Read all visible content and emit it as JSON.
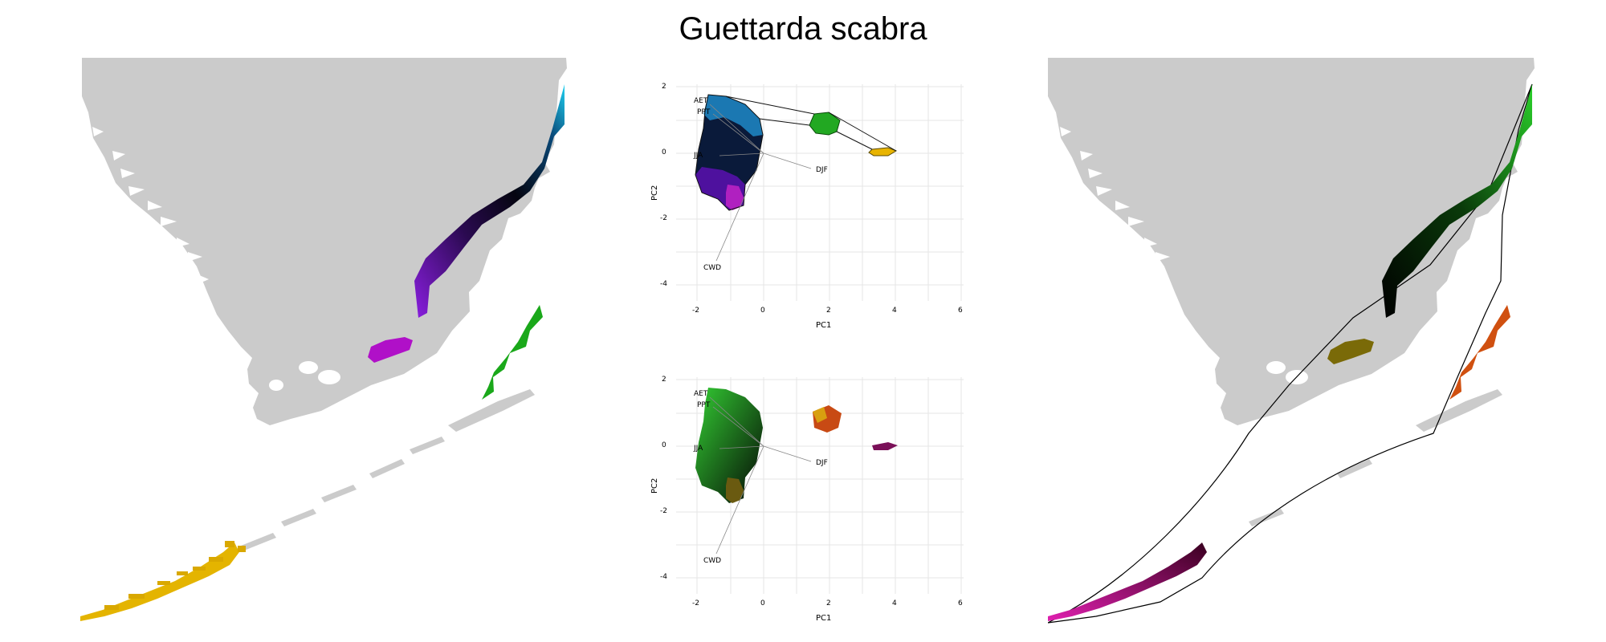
{
  "title": "Guettarda scabra",
  "pca_plots": [
    {
      "name": "pca-hulls",
      "xlabel": "PC1",
      "ylabel": "PC2",
      "xticks": [
        "-2",
        "0",
        "2",
        "4",
        "6"
      ],
      "yticks": [
        "2",
        "0",
        "-2",
        "-4"
      ],
      "vectors": [
        "AET",
        "PPT",
        "JJA",
        "DJF",
        "CWD"
      ]
    },
    {
      "name": "pca-colored",
      "xlabel": "PC1",
      "ylabel": "PC2",
      "xticks": [
        "-2",
        "0",
        "2",
        "4",
        "6"
      ],
      "yticks": [
        "2",
        "0",
        "-2",
        "-4"
      ],
      "vectors": [
        "AET",
        "PPT",
        "JJA",
        "DJF",
        "CWD"
      ]
    }
  ],
  "colors": {
    "land": "#cbcbcb",
    "cluster_blue": "#1fb3e0",
    "cluster_purple": "#6a0dad",
    "cluster_magenta": "#c020c0",
    "cluster_green": "#22b822",
    "cluster_yellow": "#e8b800",
    "point_dark": "#111111",
    "right_green": "#1ea51e",
    "right_orange": "#e05010",
    "right_olive": "#8a7a10",
    "right_magenta": "#c0169a"
  }
}
